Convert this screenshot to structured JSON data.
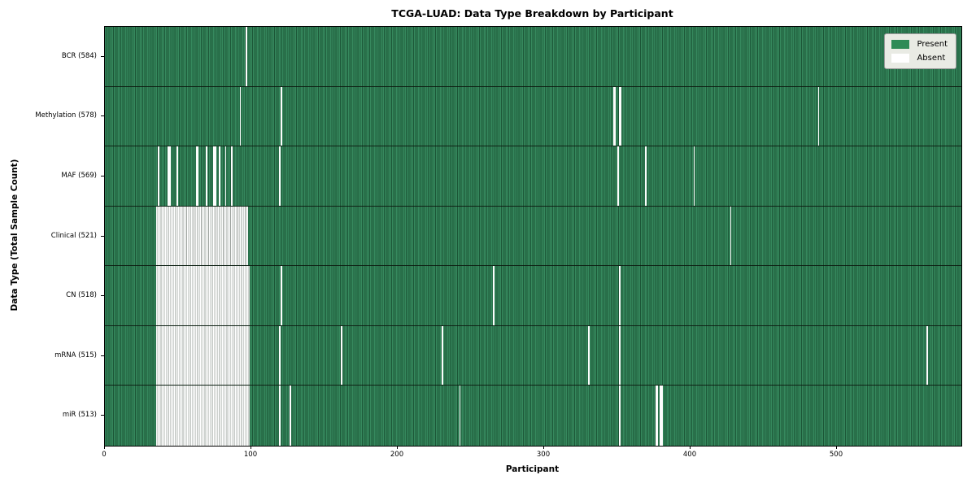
{
  "chart_data": {
    "type": "heatmap",
    "title": "TCGA-LUAD: Data Type Breakdown by Participant",
    "xlabel": "Participant",
    "ylabel": "Data Type (Total Sample Count)",
    "x_ticks": [
      0,
      100,
      200,
      300,
      400,
      500
    ],
    "n_participants": 585,
    "grid": false,
    "legend_position": "upper right",
    "legend": [
      {
        "label": "Present",
        "color": "#2e8b57"
      },
      {
        "label": "Absent",
        "color": "#ffffff"
      }
    ],
    "rows": [
      {
        "label": "BCR (584)",
        "data_type": "BCR",
        "present_count": 584,
        "absent_ranges": [
          [
            96,
            96
          ]
        ]
      },
      {
        "label": "Methylation (578)",
        "data_type": "Methylation",
        "present_count": 578,
        "absent_ranges": [
          [
            92,
            92
          ],
          [
            120,
            120
          ],
          [
            347,
            348
          ],
          [
            351,
            352
          ],
          [
            487,
            487
          ]
        ]
      },
      {
        "label": "MAF (569)",
        "data_type": "MAF",
        "present_count": 569,
        "absent_ranges": [
          [
            36,
            36
          ],
          [
            43,
            44
          ],
          [
            49,
            49
          ],
          [
            62,
            63
          ],
          [
            69,
            69
          ],
          [
            74,
            75
          ],
          [
            78,
            78
          ],
          [
            82,
            82
          ],
          [
            86,
            86
          ],
          [
            119,
            119
          ],
          [
            350,
            350
          ],
          [
            369,
            369
          ],
          [
            402,
            402
          ]
        ]
      },
      {
        "label": "Clinical (521)",
        "data_type": "Clinical",
        "present_count": 521,
        "absent_ranges": [
          [
            35,
            97
          ],
          [
            427,
            427
          ]
        ]
      },
      {
        "label": "CN (518)",
        "data_type": "CN",
        "present_count": 518,
        "absent_ranges": [
          [
            35,
            98
          ],
          [
            120,
            120
          ],
          [
            265,
            265
          ],
          [
            351,
            351
          ]
        ]
      },
      {
        "label": "mRNA (515)",
        "data_type": "mRNA",
        "present_count": 515,
        "absent_ranges": [
          [
            35,
            98
          ],
          [
            119,
            119
          ],
          [
            161,
            161
          ],
          [
            230,
            230
          ],
          [
            330,
            330
          ],
          [
            351,
            351
          ],
          [
            561,
            561
          ]
        ]
      },
      {
        "label": "miR (513)",
        "data_type": "miR",
        "present_count": 513,
        "absent_ranges": [
          [
            35,
            98
          ],
          [
            119,
            119
          ],
          [
            126,
            126
          ],
          [
            242,
            242
          ],
          [
            351,
            351
          ],
          [
            376,
            377
          ],
          [
            379,
            380
          ]
        ]
      }
    ]
  }
}
